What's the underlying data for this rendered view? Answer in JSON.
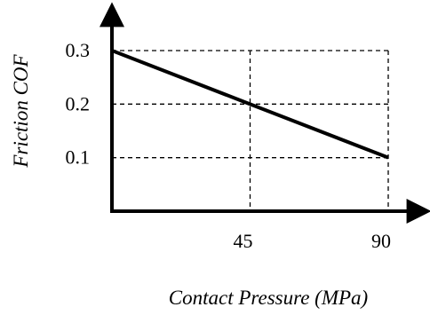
{
  "chart_data": {
    "type": "line",
    "title": "",
    "xlabel": "Contact Pressure (MPa)",
    "ylabel": "Friction  COF",
    "x_ticks": [
      {
        "value": 45,
        "label": "45"
      },
      {
        "value": 90,
        "label": "90"
      }
    ],
    "y_ticks": [
      {
        "value": 0.1,
        "label": "0.1"
      },
      {
        "value": 0.2,
        "label": "0.2"
      },
      {
        "value": 0.3,
        "label": "0.3"
      }
    ],
    "xlim": [
      0,
      90
    ],
    "ylim": [
      0,
      0.3
    ],
    "grid": true,
    "series": [
      {
        "x": [
          0,
          45,
          90
        ],
        "y": [
          0.3,
          0.2,
          0.1
        ],
        "color": "#000000"
      }
    ]
  }
}
